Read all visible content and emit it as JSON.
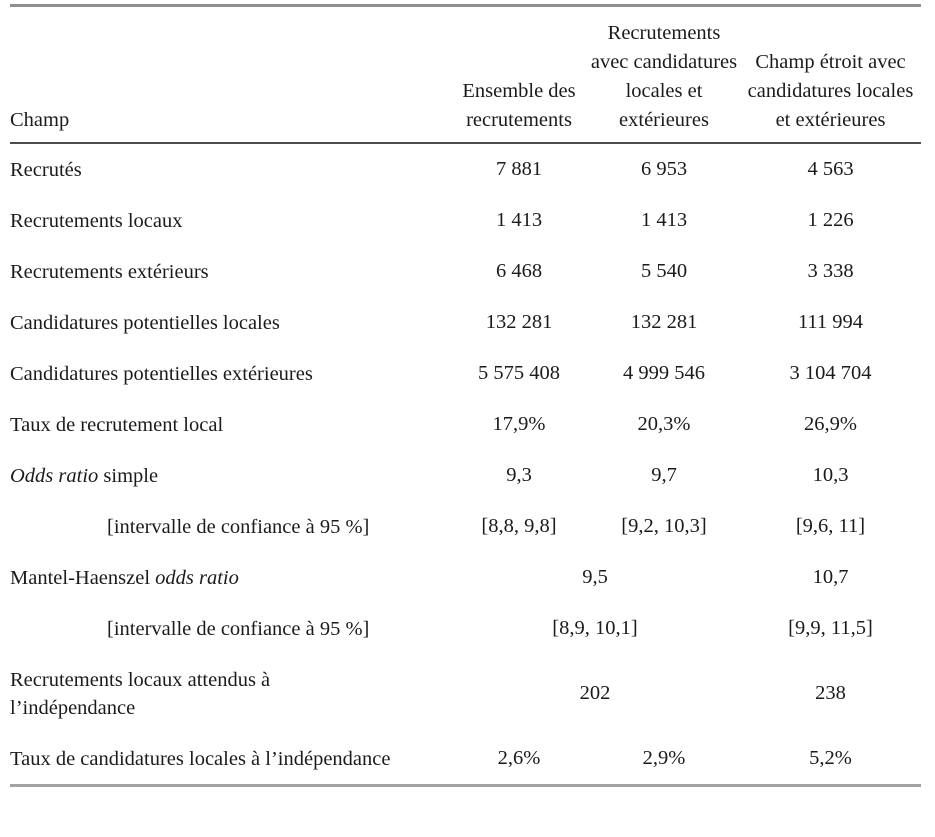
{
  "page": {
    "background": "#ffffff",
    "text_color": "#1b1b1b",
    "outer_rule_color": "#8f8f8f",
    "header_rule_color": "#4d4d4d"
  },
  "table": {
    "columns": [
      "Champ",
      "Ensemble des recrutements",
      "Recrutements avec candidatures locales et extérieures",
      "Champ étroit avec candidatures locales et extérieures"
    ],
    "rows": [
      {
        "label": [
          {
            "text": "Recrutés",
            "italic": false
          }
        ],
        "indent": false,
        "cells": [
          {
            "text": "7 881",
            "span": 1
          },
          {
            "text": "6 953",
            "span": 1
          },
          {
            "text": "4 563",
            "span": 1
          }
        ]
      },
      {
        "label": [
          {
            "text": "Recrutements locaux",
            "italic": false
          }
        ],
        "indent": false,
        "cells": [
          {
            "text": "1 413",
            "span": 1
          },
          {
            "text": "1 413",
            "span": 1
          },
          {
            "text": "1 226",
            "span": 1
          }
        ]
      },
      {
        "label": [
          {
            "text": "Recrutements extérieurs",
            "italic": false
          }
        ],
        "indent": false,
        "cells": [
          {
            "text": "6 468",
            "span": 1
          },
          {
            "text": "5 540",
            "span": 1
          },
          {
            "text": "3 338",
            "span": 1
          }
        ]
      },
      {
        "label": [
          {
            "text": "Candidatures potentielles locales",
            "italic": false
          }
        ],
        "indent": false,
        "cells": [
          {
            "text": "132 281",
            "span": 1
          },
          {
            "text": "132 281",
            "span": 1
          },
          {
            "text": "111 994",
            "span": 1
          }
        ]
      },
      {
        "label": [
          {
            "text": "Candidatures potentielles extérieures",
            "italic": false
          }
        ],
        "indent": false,
        "cells": [
          {
            "text": "5 575 408",
            "span": 1
          },
          {
            "text": "4 999 546",
            "span": 1
          },
          {
            "text": "3 104 704",
            "span": 1
          }
        ]
      },
      {
        "label": [
          {
            "text": "Taux de recrutement local",
            "italic": false
          }
        ],
        "indent": false,
        "cells": [
          {
            "text": "17,9%",
            "span": 1
          },
          {
            "text": "20,3%",
            "span": 1
          },
          {
            "text": "26,9%",
            "span": 1
          }
        ]
      },
      {
        "label": [
          {
            "text": "Odds ratio",
            "italic": true
          },
          {
            "text": " simple",
            "italic": false
          }
        ],
        "indent": false,
        "cells": [
          {
            "text": "9,3",
            "span": 1
          },
          {
            "text": "9,7",
            "span": 1
          },
          {
            "text": "10,3",
            "span": 1
          }
        ]
      },
      {
        "label": [
          {
            "text": "[intervalle de confiance à 95 %]",
            "italic": false
          }
        ],
        "indent": true,
        "cells": [
          {
            "text": "[8,8, 9,8]",
            "span": 1
          },
          {
            "text": "[9,2, 10,3]",
            "span": 1
          },
          {
            "text": "[9,6, 11]",
            "span": 1
          }
        ]
      },
      {
        "label": [
          {
            "text": "Mantel-Haenszel ",
            "italic": false
          },
          {
            "text": "odds ratio",
            "italic": true
          }
        ],
        "indent": false,
        "cells": [
          {
            "text": "9,5",
            "span": 2
          },
          {
            "text": "10,7",
            "span": 1
          }
        ]
      },
      {
        "label": [
          {
            "text": "[intervalle de confiance à 95 %]",
            "italic": false
          }
        ],
        "indent": true,
        "cells": [
          {
            "text": "[8,9, 10,1]",
            "span": 2
          },
          {
            "text": "[9,9, 11,5]",
            "span": 1
          }
        ]
      },
      {
        "label": [
          {
            "text": "Recrutements locaux attendus à l’indépendance",
            "italic": false
          }
        ],
        "indent": false,
        "cells": [
          {
            "text": "202",
            "span": 2
          },
          {
            "text": "238",
            "span": 1
          }
        ]
      },
      {
        "label": [
          {
            "text": "Taux de candidatures locales à l’indépendance",
            "italic": false
          }
        ],
        "indent": false,
        "cells": [
          {
            "text": "2,6%",
            "span": 1
          },
          {
            "text": "2,9%",
            "span": 1
          },
          {
            "text": "5,2%",
            "span": 1
          }
        ]
      }
    ]
  }
}
